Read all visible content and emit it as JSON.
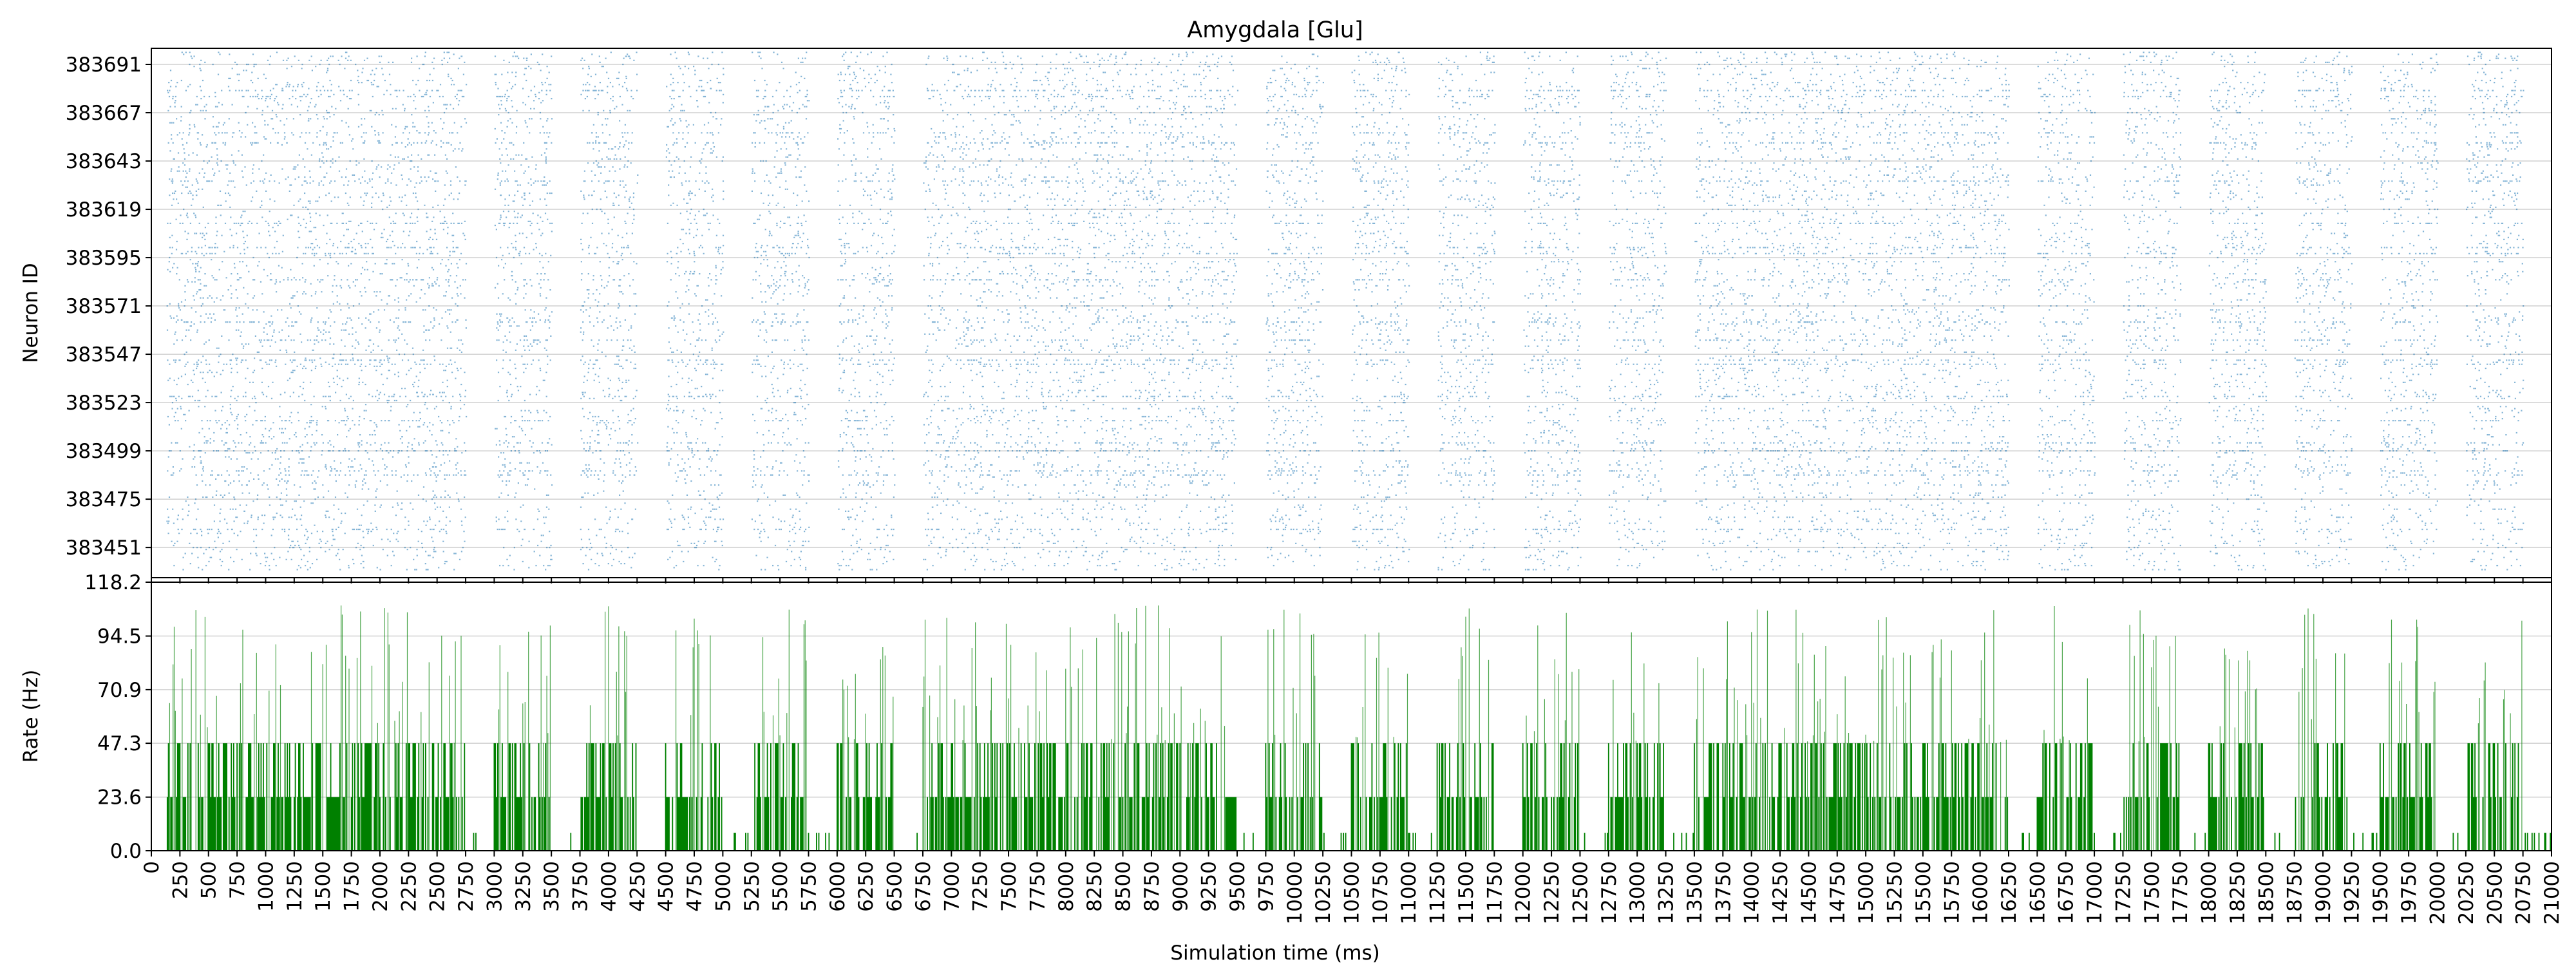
{
  "chart_data": [
    {
      "type": "scatter",
      "title": "Amygdala [Glu]",
      "xlabel": "",
      "ylabel": "Neuron ID",
      "xlim": [
        0,
        21000
      ],
      "ylim": [
        383436,
        383699
      ],
      "yticks": [
        383451,
        383475,
        383499,
        383523,
        383547,
        383571,
        383595,
        383619,
        383643,
        383667,
        383691
      ],
      "grid": true,
      "color": "#1f77b4",
      "bursts_ms": [
        [
          130,
          2750
        ],
        [
          3000,
          3500
        ],
        [
          3750,
          4250
        ],
        [
          4500,
          5000
        ],
        [
          5250,
          5750
        ],
        [
          6000,
          6500
        ],
        [
          6750,
          9500
        ],
        [
          9750,
          10250
        ],
        [
          10500,
          11000
        ],
        [
          11250,
          11750
        ],
        [
          12000,
          12500
        ],
        [
          12750,
          13250
        ],
        [
          13500,
          16250
        ],
        [
          16500,
          17000
        ],
        [
          17250,
          17750
        ],
        [
          18000,
          18500
        ],
        [
          18750,
          19250
        ],
        [
          19500,
          20000
        ],
        [
          20250,
          20750
        ]
      ]
    },
    {
      "type": "bar",
      "title": "",
      "xlabel": "Simulation time (ms)",
      "ylabel": "Rate (Hz)",
      "xlim": [
        0,
        21000
      ],
      "ylim": [
        0,
        118.2
      ],
      "yticks": [
        "0.0",
        "23.6",
        "47.3",
        "70.9",
        "94.5",
        "118.2"
      ],
      "xticks": [
        "0",
        "250",
        "500",
        "750",
        "1000",
        "1250",
        "1500",
        "1750",
        "2000",
        "2250",
        "2500",
        "2750",
        "3000",
        "3250",
        "3500",
        "3750",
        "4000",
        "4250",
        "4500",
        "4750",
        "5000",
        "5250",
        "5500",
        "5750",
        "6000",
        "6250",
        "6500",
        "6750",
        "7000",
        "7250",
        "7500",
        "7750",
        "8000",
        "8250",
        "8500",
        "8750",
        "9000",
        "9250",
        "9500",
        "9750",
        "10000",
        "10250",
        "10500",
        "10750",
        "11000",
        "11250",
        "11500",
        "11750",
        "12000",
        "12250",
        "12500",
        "12750",
        "13000",
        "13250",
        "13500",
        "13750",
        "14000",
        "14250",
        "14500",
        "14750",
        "15000",
        "15250",
        "15500",
        "15750",
        "16000",
        "16250",
        "16500",
        "16750",
        "17000",
        "17250",
        "17500",
        "17750",
        "18000",
        "18250",
        "18500",
        "18750",
        "19000",
        "19250",
        "19500",
        "19750",
        "20000",
        "20250",
        "20500",
        "20750",
        "21000"
      ],
      "bin_ms": 10,
      "grid": true,
      "color": "#008000",
      "typical_rate_hz": [
        0,
        23.6,
        47.3
      ],
      "peak_rate_hz": 108
    }
  ]
}
